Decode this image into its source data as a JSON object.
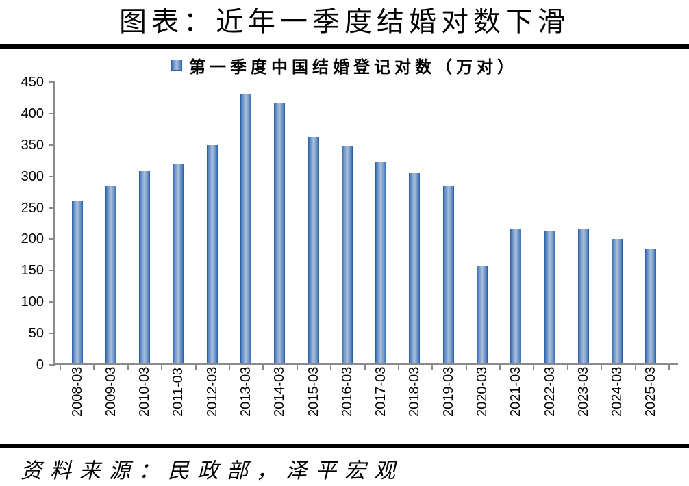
{
  "title": "图表：近年一季度结婚对数下滑",
  "legend": {
    "label": "第一季度中国结婚登记对数（万对）"
  },
  "source": "资料来源：民政部，泽平宏观",
  "colors": {
    "bar_edge": "#3e73b6",
    "bar_center": "#abc2dd",
    "bar_border": "#2f62a7",
    "axis": "#8a8a8a",
    "rule": "#000000",
    "text": "#000000"
  },
  "chart_data": {
    "type": "bar",
    "title": "图表：近年一季度结婚对数下滑",
    "legend_entries": [
      "第一季度中国结婚登记对数（万对）"
    ],
    "legend_position": "top",
    "categories": [
      "2008-03",
      "2009-03",
      "2010-03",
      "2011-03",
      "2012-03",
      "2013-03",
      "2014-03",
      "2015-03",
      "2016-03",
      "2017-03",
      "2018-03",
      "2019-03",
      "2020-03",
      "2021-03",
      "2022-03",
      "2023-03",
      "2024-03",
      "2025-03"
    ],
    "values": [
      258,
      282,
      305,
      317,
      347,
      428,
      413,
      360,
      345,
      319,
      302,
      281,
      155,
      212,
      210,
      214,
      197,
      181
    ],
    "xlabel": "",
    "ylabel": "",
    "ylim": [
      0,
      450
    ],
    "yticks": [
      0,
      50,
      100,
      150,
      200,
      250,
      300,
      350,
      400,
      450
    ],
    "grid": false,
    "source_note": "资料来源：民政部，泽平宏观"
  }
}
